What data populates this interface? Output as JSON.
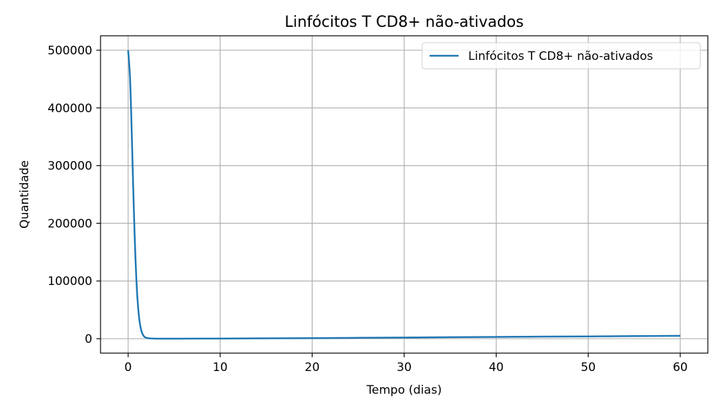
{
  "chart_data": {
    "type": "line",
    "title": "Linfócitos T CD8+ não-ativados",
    "xlabel": "Tempo (dias)",
    "ylabel": "Quantidade",
    "xlim": [
      -3,
      63
    ],
    "ylim": [
      -25000,
      525000
    ],
    "xticks": [
      0,
      10,
      20,
      30,
      40,
      50,
      60
    ],
    "yticks": [
      0,
      100000,
      200000,
      300000,
      400000,
      500000
    ],
    "grid": true,
    "legend_position": "top-right",
    "series": [
      {
        "name": "Linfócitos T CD8+ não-ativados",
        "color": "#1f77b4",
        "x": [
          0,
          0.1,
          0.2,
          0.3,
          0.4,
          0.5,
          0.6,
          0.7,
          0.8,
          0.9,
          1.0,
          1.1,
          1.2,
          1.3,
          1.4,
          1.5,
          1.6,
          1.7,
          1.8,
          1.9,
          2.0,
          2.2,
          2.4,
          2.6,
          2.8,
          3.0,
          3.5,
          4,
          5,
          6,
          8,
          10,
          15,
          20,
          25,
          30,
          35,
          40,
          45,
          50,
          55,
          60
        ],
        "y": [
          500000,
          480000,
          455000,
          410000,
          352000,
          292000,
          235000,
          182000,
          138000,
          101000,
          72000,
          51000,
          35000,
          24000,
          16000,
          10500,
          7000,
          4500,
          3000,
          2000,
          1400,
          800,
          450,
          280,
          180,
          120,
          70,
          50,
          50,
          80,
          150,
          250,
          600,
          1000,
          1500,
          2000,
          2600,
          3100,
          3600,
          4000,
          4500,
          5000
        ]
      }
    ]
  }
}
